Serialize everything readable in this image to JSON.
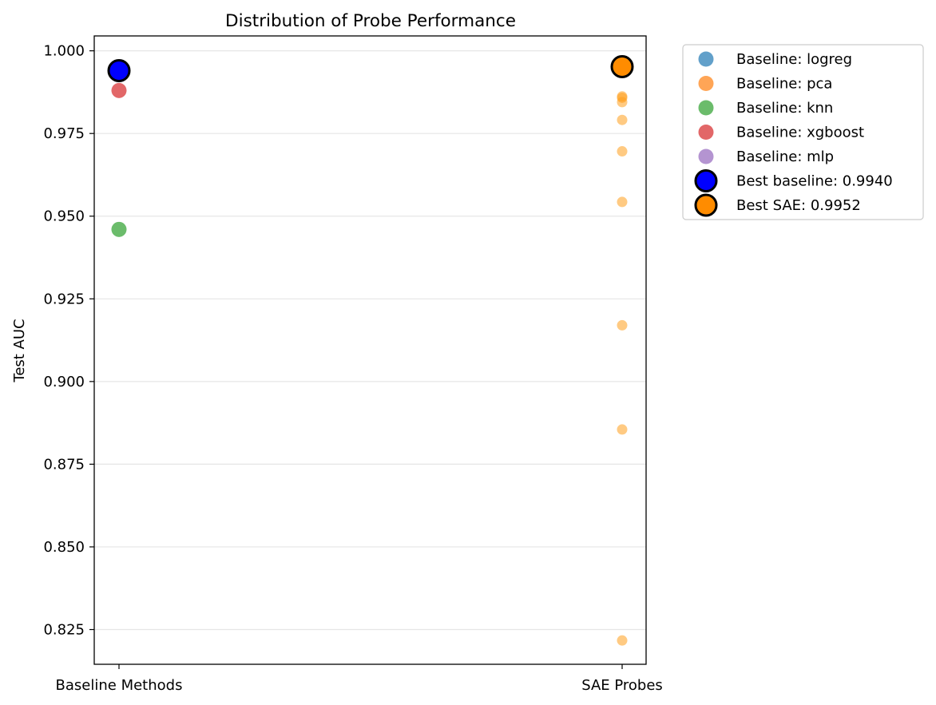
{
  "chart_data": {
    "type": "scatter",
    "title": "Distribution of Probe Performance",
    "xlabel": "",
    "ylabel": "Test AUC",
    "categories": [
      "Baseline Methods",
      "SAE Probes"
    ],
    "ylim": [
      0.8145,
      1.0045
    ],
    "yticks": [
      0.825,
      0.85,
      0.875,
      0.9,
      0.925,
      0.95,
      0.975,
      1.0
    ],
    "ytick_labels": [
      "0.825",
      "0.850",
      "0.875",
      "0.900",
      "0.925",
      "0.950",
      "0.975",
      "1.000"
    ],
    "grid": "horizontal",
    "legend_position": "outside-top-right",
    "series": [
      {
        "name": "Baseline: logreg",
        "color": "#1f77b4",
        "alpha": 0.7,
        "size": "large",
        "points": [
          {
            "category": "Baseline Methods",
            "y": 0.994
          }
        ]
      },
      {
        "name": "Baseline: pca",
        "color": "#ff7f0e",
        "alpha": 0.7,
        "size": "large",
        "points": []
      },
      {
        "name": "Baseline: knn",
        "color": "#2ca02c",
        "alpha": 0.7,
        "size": "large",
        "points": [
          {
            "category": "Baseline Methods",
            "y": 0.946
          }
        ]
      },
      {
        "name": "Baseline: xgboost",
        "color": "#d62728",
        "alpha": 0.7,
        "size": "large",
        "points": [
          {
            "category": "Baseline Methods",
            "y": 0.988
          }
        ]
      },
      {
        "name": "Baseline: mlp",
        "color": "#9467bd",
        "alpha": 0.7,
        "size": "large",
        "points": [
          {
            "category": "Baseline Methods",
            "y": 0.994
          }
        ]
      },
      {
        "name": "",
        "color": "#ff9f1c",
        "alpha": 0.55,
        "size": "small",
        "legend": false,
        "points": [
          {
            "category": "SAE Probes",
            "y": 0.9862
          },
          {
            "category": "SAE Probes",
            "y": 0.9858
          },
          {
            "category": "SAE Probes",
            "y": 0.9845
          },
          {
            "category": "SAE Probes",
            "y": 0.9791
          },
          {
            "category": "SAE Probes",
            "y": 0.9696
          },
          {
            "category": "SAE Probes",
            "y": 0.9543
          },
          {
            "category": "SAE Probes",
            "y": 0.917
          },
          {
            "category": "SAE Probes",
            "y": 0.8855
          },
          {
            "category": "SAE Probes",
            "y": 0.8217
          }
        ]
      },
      {
        "name": "Best baseline: 0.9940",
        "color": "#0000ff",
        "edge": "#000000",
        "alpha": 1,
        "size": "best",
        "points": [
          {
            "category": "Baseline Methods",
            "y": 0.994
          }
        ]
      },
      {
        "name": "Best SAE: 0.9952",
        "color": "#ff8c00",
        "edge": "#000000",
        "alpha": 1,
        "size": "best",
        "points": [
          {
            "category": "SAE Probes",
            "y": 0.9952
          }
        ]
      }
    ]
  }
}
